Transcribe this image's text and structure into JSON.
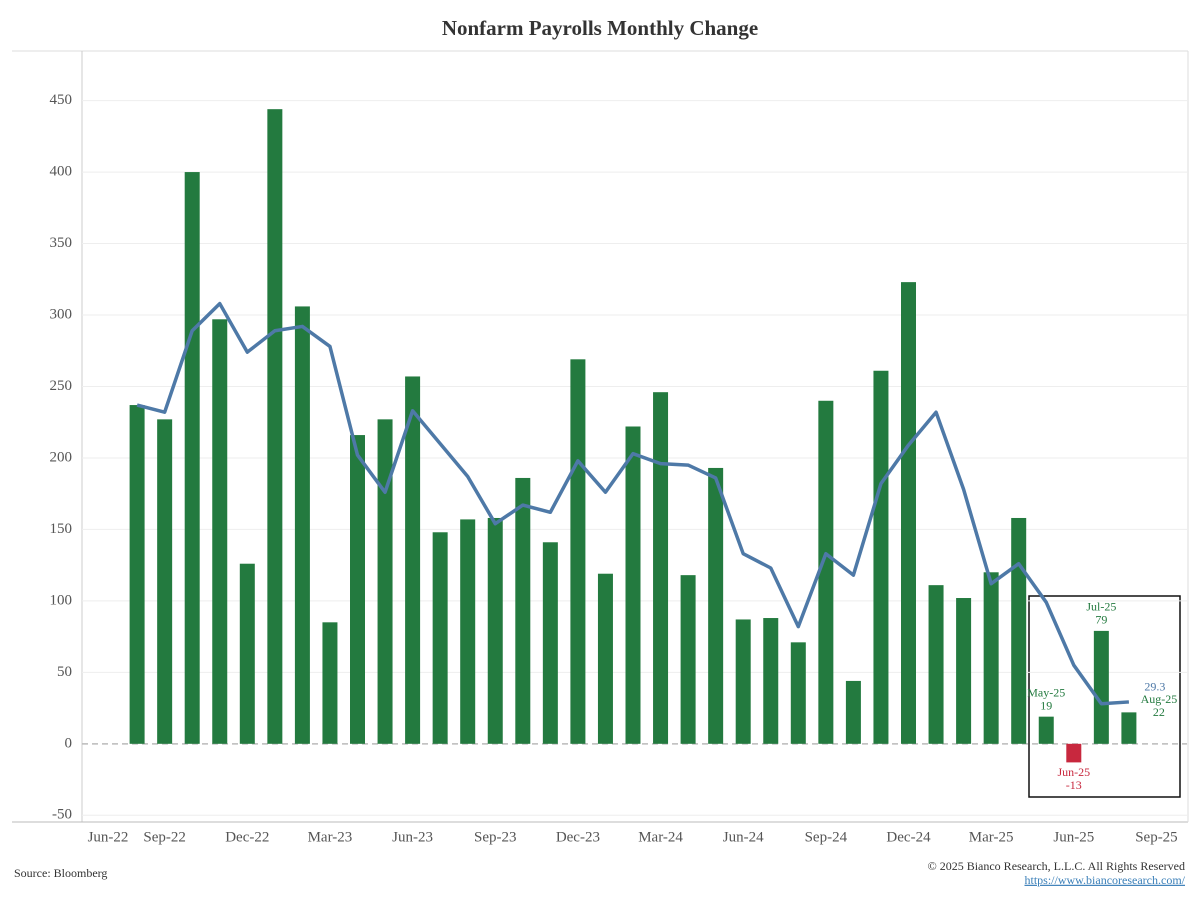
{
  "chart_data": {
    "type": "bar",
    "title": "Nonfarm Payrolls Monthly Change",
    "categories": [
      "Jun-22",
      null,
      null,
      "Sep-22",
      null,
      null,
      "Dec-22",
      null,
      null,
      "Mar-23",
      null,
      null,
      "Jun-23",
      null,
      null,
      "Sep-23",
      null,
      null,
      "Dec-23",
      null,
      null,
      "Mar-24",
      null,
      null,
      "Jun-24",
      null,
      null,
      "Sep-24",
      null,
      null,
      "Dec-24",
      null,
      null,
      "Mar-25",
      null,
      null,
      "Jun-25",
      null,
      null,
      "Sep-25"
    ],
    "series": [
      {
        "type": "bar",
        "color": "#237a3f",
        "negative_color": "#c8283e",
        "values": [
          null,
          null,
          237,
          227,
          400,
          297,
          126,
          444,
          306,
          85,
          216,
          227,
          257,
          148,
          157,
          158,
          186,
          141,
          269,
          119,
          222,
          246,
          118,
          193,
          87,
          88,
          71,
          240,
          44,
          261,
          323,
          111,
          102,
          120,
          158,
          19,
          -13,
          79,
          22,
          null
        ],
        "bar_labels": [
          null,
          null,
          null,
          null,
          null,
          null,
          null,
          null,
          null,
          null,
          null,
          null,
          null,
          null,
          null,
          null,
          null,
          null,
          null,
          null,
          null,
          null,
          null,
          null,
          null,
          null,
          null,
          null,
          null,
          null,
          null,
          null,
          null,
          null,
          null,
          "May-25",
          "Jun-25",
          "Jul-25",
          "Aug-25",
          null
        ]
      },
      {
        "type": "line",
        "color": "#4e79a7",
        "values": [
          null,
          null,
          237,
          232,
          289,
          308,
          274,
          289,
          292,
          278,
          202,
          176,
          233,
          210,
          187,
          154,
          167,
          162,
          198,
          176,
          203,
          196,
          195,
          186,
          133,
          123,
          82,
          133,
          118,
          182,
          209,
          232,
          178,
          112,
          126,
          99,
          55,
          28,
          29.3,
          null
        ],
        "value_labels": [
          null,
          null,
          null,
          null,
          null,
          null,
          null,
          null,
          null,
          null,
          null,
          null,
          null,
          null,
          null,
          null,
          null,
          null,
          null,
          null,
          null,
          null,
          null,
          null,
          null,
          null,
          null,
          null,
          null,
          null,
          null,
          null,
          null,
          null,
          null,
          null,
          null,
          null,
          "29.3",
          null
        ]
      }
    ],
    "ylim": [
      -54,
      484
    ],
    "yticks": [
      -50,
      0,
      50,
      100,
      150,
      200,
      250,
      300,
      350,
      400,
      450
    ],
    "grid": true,
    "source": "Source: Bloomberg",
    "copyright": "© 2025 Bianco Research, L.L.C. All Rights Reserved",
    "url": "https://www.biancoresearch.com/"
  }
}
